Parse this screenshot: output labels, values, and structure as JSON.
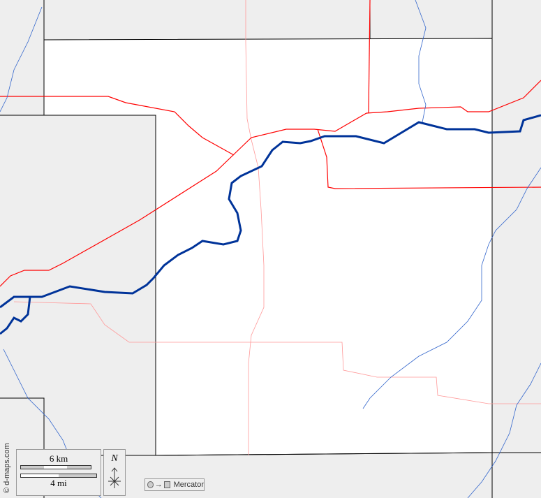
{
  "map": {
    "colors": {
      "background": "#eeeeee",
      "county": "#ffffff",
      "border": "#000000",
      "river_major": "#003399",
      "river_minor": "#3366cc",
      "highway": "#ff0000",
      "road": "#ff9999"
    }
  },
  "copyright": "© d-maps.com",
  "scale": {
    "km_label": "6 km",
    "mi_label": "4 mi"
  },
  "compass": {
    "north_label": "N"
  },
  "projection": {
    "label": "Mercator",
    "icon_from": "circle-icon",
    "icon_to": "square-icon"
  }
}
